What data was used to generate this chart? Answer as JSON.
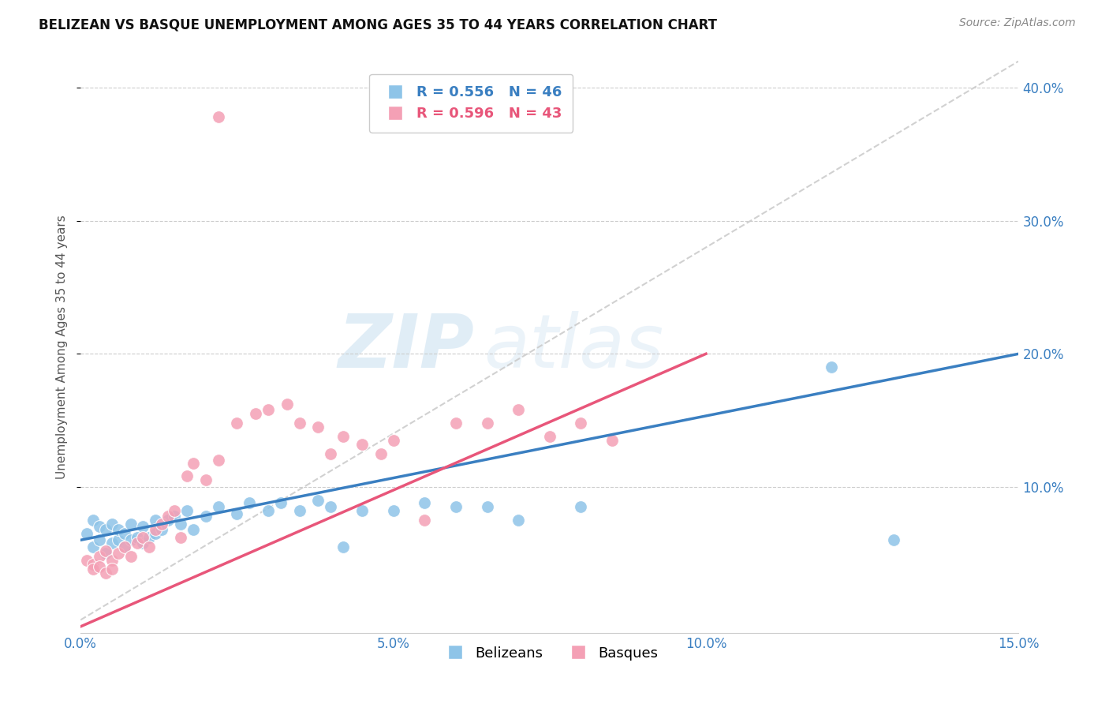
{
  "title": "BELIZEAN VS BASQUE UNEMPLOYMENT AMONG AGES 35 TO 44 YEARS CORRELATION CHART",
  "source": "Source: ZipAtlas.com",
  "ylabel": "Unemployment Among Ages 35 to 44 years",
  "xlim": [
    0.0,
    0.15
  ],
  "ylim": [
    -0.01,
    0.42
  ],
  "xticks": [
    0.0,
    0.05,
    0.1,
    0.15
  ],
  "yticks_right": [
    0.1,
    0.2,
    0.3,
    0.4
  ],
  "belizean_R": 0.556,
  "belizean_N": 46,
  "basque_R": 0.596,
  "basque_N": 43,
  "belizean_color": "#8ec4e8",
  "basque_color": "#f4a0b5",
  "belizean_trend_color": "#3a7fc1",
  "basque_trend_color": "#e8567a",
  "diagonal_color": "#cccccc",
  "watermark_zip": "ZIP",
  "watermark_atlas": "atlas",
  "bel_x": [
    0.001,
    0.002,
    0.002,
    0.003,
    0.003,
    0.004,
    0.004,
    0.005,
    0.005,
    0.006,
    0.006,
    0.007,
    0.007,
    0.008,
    0.008,
    0.009,
    0.01,
    0.01,
    0.011,
    0.012,
    0.012,
    0.013,
    0.014,
    0.015,
    0.016,
    0.017,
    0.018,
    0.02,
    0.022,
    0.025,
    0.027,
    0.03,
    0.032,
    0.035,
    0.038,
    0.04,
    0.042,
    0.045,
    0.05,
    0.055,
    0.06,
    0.065,
    0.07,
    0.08,
    0.12,
    0.13
  ],
  "bel_y": [
    0.065,
    0.055,
    0.075,
    0.06,
    0.07,
    0.05,
    0.068,
    0.058,
    0.072,
    0.06,
    0.068,
    0.055,
    0.065,
    0.06,
    0.072,
    0.062,
    0.058,
    0.07,
    0.062,
    0.065,
    0.075,
    0.068,
    0.075,
    0.078,
    0.072,
    0.082,
    0.068,
    0.078,
    0.085,
    0.08,
    0.088,
    0.082,
    0.088,
    0.082,
    0.09,
    0.085,
    0.055,
    0.082,
    0.082,
    0.088,
    0.085,
    0.085,
    0.075,
    0.085,
    0.19,
    0.06
  ],
  "bas_x": [
    0.001,
    0.002,
    0.002,
    0.003,
    0.003,
    0.004,
    0.004,
    0.005,
    0.005,
    0.006,
    0.007,
    0.008,
    0.009,
    0.01,
    0.011,
    0.012,
    0.013,
    0.014,
    0.015,
    0.016,
    0.017,
    0.018,
    0.02,
    0.022,
    0.025,
    0.028,
    0.03,
    0.033,
    0.035,
    0.038,
    0.04,
    0.042,
    0.045,
    0.048,
    0.05,
    0.055,
    0.06,
    0.065,
    0.07,
    0.075,
    0.08,
    0.085,
    0.022
  ],
  "bas_y": [
    0.045,
    0.042,
    0.038,
    0.048,
    0.04,
    0.035,
    0.052,
    0.045,
    0.038,
    0.05,
    0.055,
    0.048,
    0.058,
    0.062,
    0.055,
    0.068,
    0.072,
    0.078,
    0.082,
    0.062,
    0.108,
    0.118,
    0.105,
    0.12,
    0.148,
    0.155,
    0.158,
    0.162,
    0.148,
    0.145,
    0.125,
    0.138,
    0.132,
    0.125,
    0.135,
    0.075,
    0.148,
    0.148,
    0.158,
    0.138,
    0.148,
    0.135,
    0.378
  ],
  "bel_trend_x0": 0.0,
  "bel_trend_y0": 0.06,
  "bel_trend_x1": 0.15,
  "bel_trend_y1": 0.2,
  "bas_trend_x0": 0.0,
  "bas_trend_y0": -0.005,
  "bas_trend_x1": 0.1,
  "bas_trend_y1": 0.2
}
